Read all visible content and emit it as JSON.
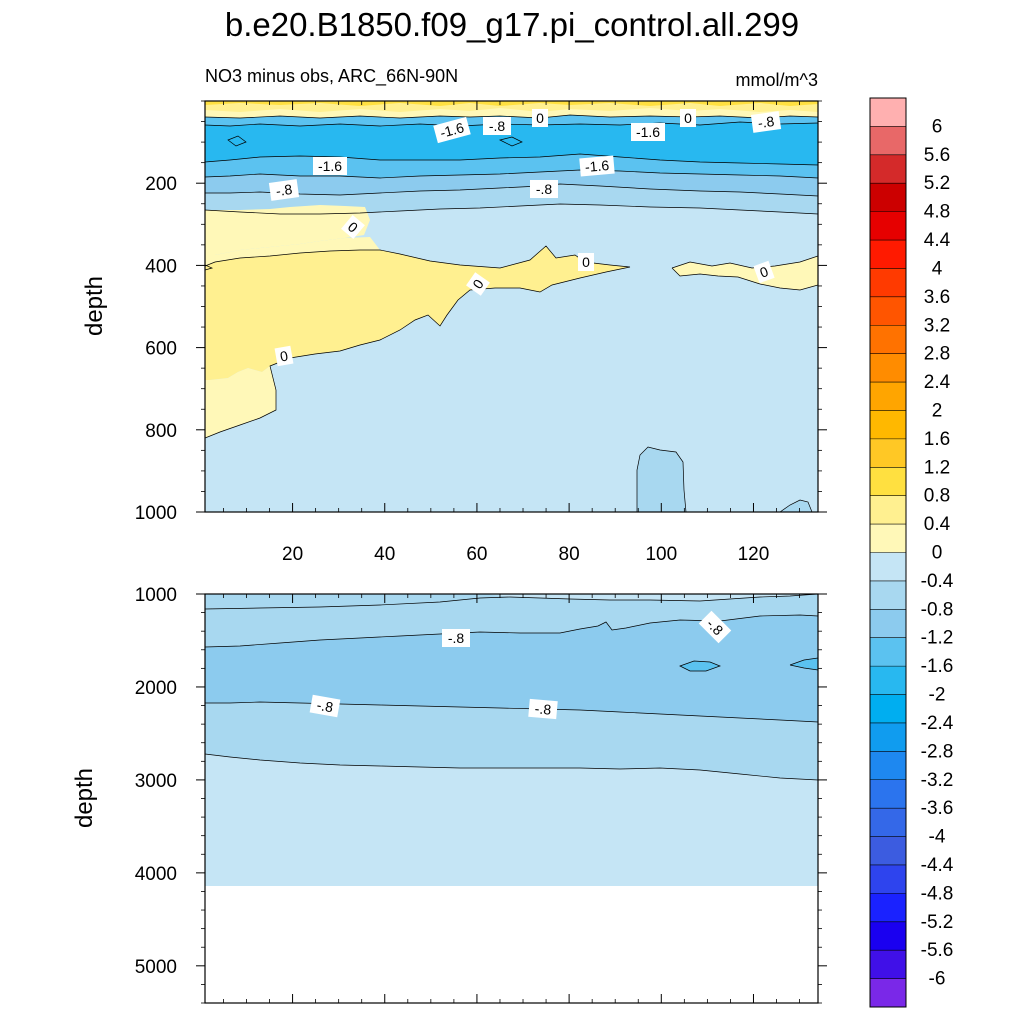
{
  "chart_data": [
    {
      "type": "heatmap",
      "panel": "upper",
      "title": "b.e20.B1850.f09_g17.pi_control.all.299",
      "left_subtitle": "NO3 minus obs, ARC_66N-90N",
      "right_subtitle": "mmol/m^3",
      "xlabel": "",
      "ylabel": "depth",
      "xlim": [
        1,
        134
      ],
      "ylim": [
        1000,
        0
      ],
      "x_ticks": [
        20,
        40,
        60,
        80,
        100,
        120
      ],
      "y_ticks": [
        200,
        400,
        600,
        800,
        1000
      ],
      "contour_labels": [
        "-1.6",
        "-.8",
        "0",
        "-1.6",
        "0",
        "-.8",
        "-1.6",
        "-1.6",
        "-.8",
        "-.8",
        "0",
        "0",
        "0",
        "0",
        "0"
      ],
      "regions": [
        {
          "value_range": [
            0,
            0.4
          ],
          "description": "surface layer and intermediate-depth positive anomaly"
        },
        {
          "value_range": [
            -2,
            -1.6
          ],
          "description": "subsurface minimum near 100 m"
        },
        {
          "value_range": [
            -0.4,
            0
          ],
          "description": "bulk of deep water"
        }
      ]
    },
    {
      "type": "heatmap",
      "panel": "lower",
      "xlabel": "",
      "ylabel": "depth",
      "xlim": [
        1,
        134
      ],
      "ylim": [
        5400,
        1000
      ],
      "x_ticks": [
        20,
        40,
        60,
        80,
        100,
        120
      ],
      "y_ticks": [
        1000,
        2000,
        3000,
        4000,
        5000
      ],
      "contour_labels": [
        "-.8",
        "-.8",
        "-.8",
        "-.8"
      ],
      "bottom_depth": 4120
    }
  ],
  "colorbar": {
    "labels": [
      "6",
      "5.6",
      "5.2",
      "4.8",
      "4.4",
      "4",
      "3.6",
      "3.2",
      "2.8",
      "2.4",
      "2",
      "1.6",
      "1.2",
      "0.8",
      "0.4",
      "0",
      "-0.4",
      "-0.8",
      "-1.2",
      "-1.6",
      "-2",
      "-2.4",
      "-2.8",
      "-3.2",
      "-3.6",
      "-4",
      "-4.4",
      "-4.8",
      "-5.2",
      "-5.6",
      "-6"
    ],
    "colors": [
      "#ffb0b0",
      "#e86868",
      "#d42a2a",
      "#cc0000",
      "#e60000",
      "#ff1a00",
      "#ff3a00",
      "#ff5500",
      "#ff7200",
      "#ff8c00",
      "#ffa500",
      "#ffb800",
      "#ffc825",
      "#ffe040",
      "#fff090",
      "#fff8b8",
      "#c5e5f5",
      "#a8d8f0",
      "#8ccbee",
      "#5bc2f0",
      "#28b8f0",
      "#00aef0",
      "#109cef",
      "#1e88f0",
      "#2b74ee",
      "#3468e8",
      "#3c5ce0",
      "#2e44ee",
      "#1a22ff",
      "#1a00f0",
      "#4010e8",
      "#7a28e8"
    ]
  },
  "colors": {
    "yellow_pale": "#fff8b8",
    "yellow": "#fff090",
    "yellow_mid": "#ffe040",
    "blue_pale": "#c5e5f5",
    "blue_light": "#a8d8f0",
    "blue_med": "#8ccbee",
    "blue_cyan": "#5bc2f0",
    "blue_deep": "#28b8f0"
  }
}
